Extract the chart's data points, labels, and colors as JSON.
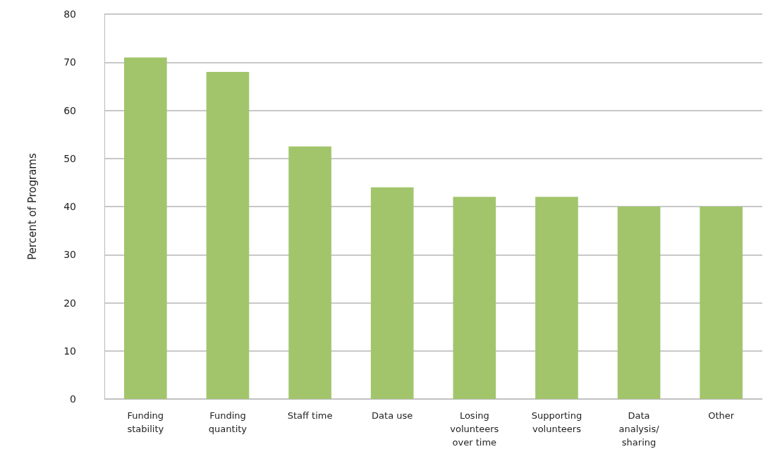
{
  "chart_data": {
    "type": "bar",
    "ylabel": "Percent of Programs",
    "categories": [
      "Funding\nstability",
      "Funding\nquantity",
      "Staff time",
      "Data use",
      "Losing\nvolunteers\nover time",
      "Supporting\nvolunteers",
      "Data\nanalysis/\nsharing",
      "Other"
    ],
    "values": [
      71,
      68,
      52.5,
      44,
      42,
      42,
      40,
      40
    ],
    "color": "#a2c56c",
    "ylim": [
      0,
      80
    ],
    "yticks": [
      0,
      10,
      20,
      30,
      40,
      50,
      60,
      70,
      80
    ],
    "grid": "y"
  }
}
